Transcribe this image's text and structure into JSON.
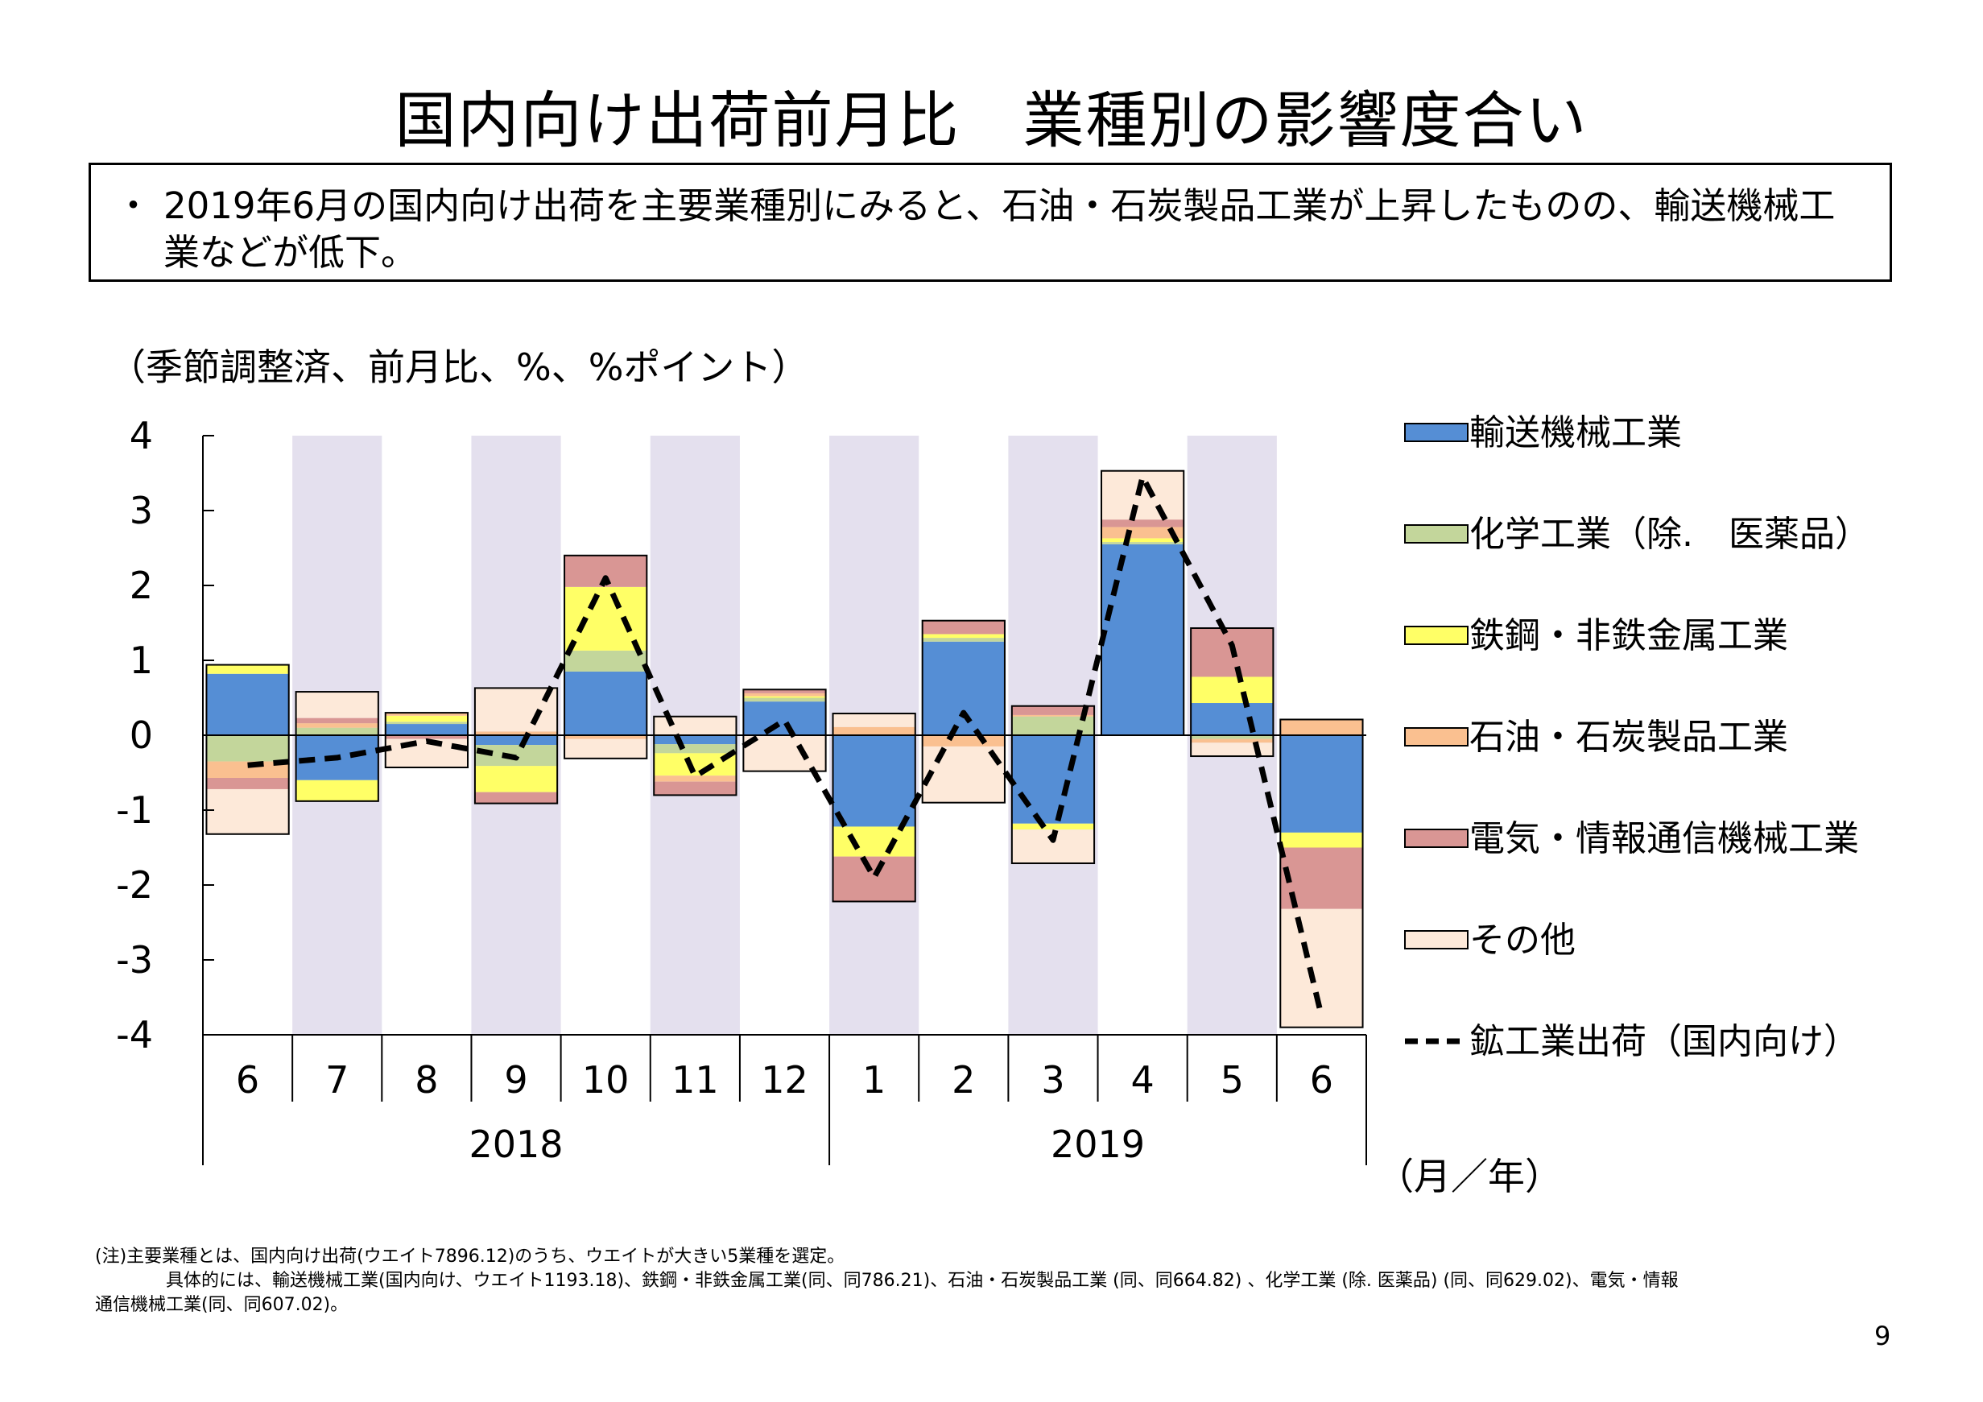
{
  "title": "国内向け出荷前月比　業種別の影響度合い",
  "summary": {
    "bullet": "・",
    "text": "2019年6月の国内向け出荷を主要業種別にみると、石油・石炭製品工業が上昇したものの、輸送機械工業などが低下。"
  },
  "unit_label": "（季節調整済、前月比、%、%ポイント）",
  "x_unit_label": "（月／年）",
  "notes": {
    "line1": "(注)主要業種とは、国内向け出荷(ウエイト7896.12)のうち、ウエイトが大きい5業種を選定。",
    "line2": "具体的には、輸送機械工業(国内向け、ウエイト1193.18)、鉄鋼・非鉄金属工業(同、同786.21)、石油・石炭製品工業 (同、同664.82) 、化学工業 (除. 医薬品) (同、同629.02)、電気・情報",
    "line3": "通信機械工業(同、同607.02)。"
  },
  "page_number": "9",
  "chart_data": {
    "type": "bar",
    "stacked": true,
    "categories": [
      "6",
      "7",
      "8",
      "9",
      "10",
      "11",
      "12",
      "1",
      "2",
      "3",
      "4",
      "5",
      "6"
    ],
    "year_groups": [
      {
        "label": "2018",
        "start": 0,
        "end": 6
      },
      {
        "label": "2019",
        "start": 7,
        "end": 12
      }
    ],
    "ylim": [
      -4,
      4
    ],
    "yticks": [
      "4",
      "3",
      "2",
      "1",
      "0",
      "-1",
      "-2",
      "-3",
      "-4"
    ],
    "shaded_columns": [
      1,
      3,
      5,
      7,
      9,
      11
    ],
    "shade_color": "#e4e0ee",
    "series": [
      {
        "name": "輸送機械工業",
        "color": "#558ed5",
        "values": [
          0.82,
          -0.6,
          0.15,
          -0.13,
          0.85,
          -0.12,
          0.45,
          -1.22,
          1.25,
          -1.18,
          2.55,
          0.43,
          -1.3
        ]
      },
      {
        "name": "化学工業（除.　医薬品）",
        "color": "#c3d69b",
        "values": [
          -0.35,
          0.1,
          0.03,
          -0.28,
          0.28,
          -0.12,
          0.05,
          0.01,
          0.05,
          0.25,
          0.03,
          -0.05,
          0.01
        ]
      },
      {
        "name": "鉄鋼・非鉄金属工業",
        "color": "#ffff66",
        "values": [
          0.12,
          -0.28,
          0.08,
          -0.35,
          0.85,
          -0.3,
          0.02,
          -0.4,
          0.05,
          -0.08,
          0.05,
          0.35,
          -0.2
        ]
      },
      {
        "name": "石油・石炭製品工業",
        "color": "#fac090",
        "values": [
          -0.22,
          0.06,
          0.04,
          0.05,
          -0.05,
          -0.08,
          0.04,
          0.1,
          -0.15,
          0.02,
          0.15,
          -0.05,
          0.2
        ]
      },
      {
        "name": "電気・情報通信機械工業",
        "color": "#d99694",
        "values": [
          -0.15,
          0.07,
          -0.05,
          -0.15,
          0.42,
          -0.18,
          0.05,
          -0.6,
          0.18,
          0.12,
          0.1,
          0.65,
          -0.82
        ]
      },
      {
        "name": "その他",
        "color": "#fde9d9",
        "values": [
          -0.6,
          0.35,
          -0.38,
          0.58,
          -0.26,
          0.25,
          -0.48,
          0.18,
          -0.75,
          -0.45,
          0.65,
          -0.18,
          -1.58
        ]
      }
    ],
    "line_series": {
      "name": "鉱工業出荷（国内向け）",
      "color": "#000000",
      "values": [
        -0.4,
        -0.3,
        -0.08,
        -0.3,
        2.1,
        -0.55,
        0.2,
        -1.9,
        0.3,
        -1.4,
        3.45,
        1.2,
        -3.75
      ]
    }
  }
}
